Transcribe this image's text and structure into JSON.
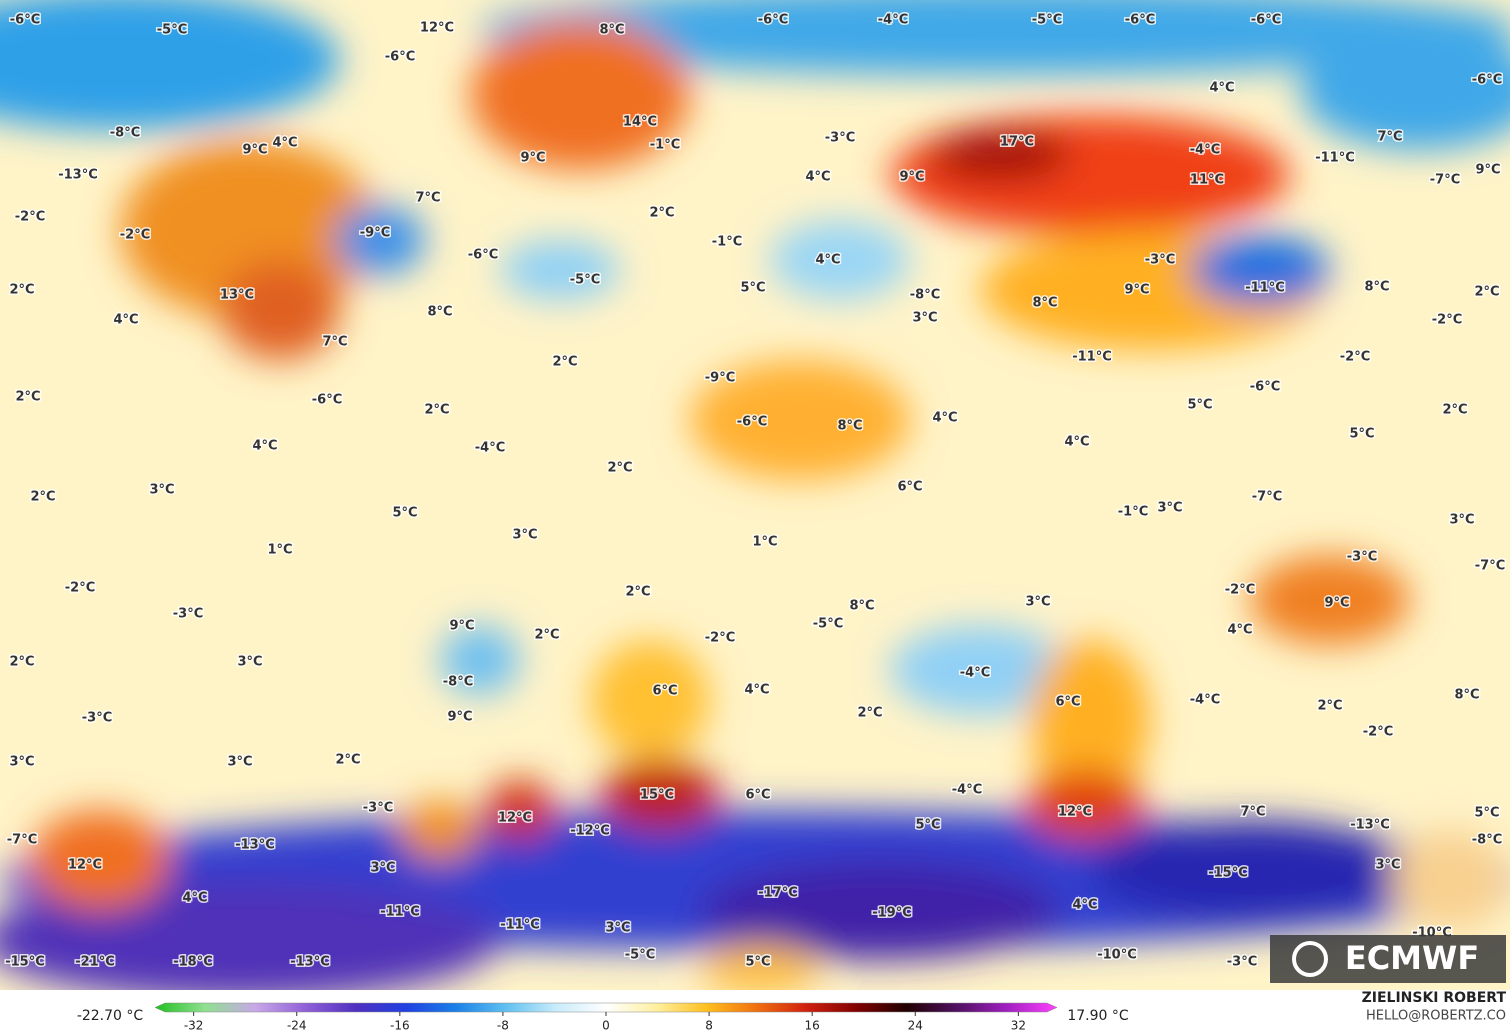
{
  "map_labels": [
    "-6°C",
    "-5°C",
    "12°C",
    "-6°C",
    "8°C",
    "-6°C",
    "-4°C",
    "-5°C",
    "-6°C",
    "-6°C",
    "-6°C",
    "4°C",
    "-8°C",
    "9°C",
    "4°C",
    "14°C",
    "-1°C",
    "9°C",
    "-3°C",
    "17°C",
    "-4°C",
    "-11°C",
    "7°C",
    "9°C",
    "-13°C",
    "4°C",
    "9°C",
    "11°C",
    "-7°C",
    "-2°C",
    "-2°C",
    "7°C",
    "2°C",
    "-9°C",
    "-1°C",
    "-6°C",
    "-5°C",
    "4°C",
    "-3°C",
    "-11°C",
    "2°C",
    "13°C",
    "5°C",
    "9°C",
    "8°C",
    "2°C",
    "4°C",
    "8°C",
    "-8°C",
    "3°C",
    "8°C",
    "-2°C",
    "7°C",
    "2°C",
    "-11°C",
    "-2°C",
    "-9°C",
    "-6°C",
    "2°C",
    "-6°C",
    "2°C",
    "5°C",
    "2°C",
    "-6°C",
    "8°C",
    "4°C",
    "4°C",
    "-4°C",
    "4°C",
    "5°C",
    "2°C",
    "3°C",
    "2°C",
    "-7°C",
    "6°C",
    "5°C",
    "-1°C",
    "3°C",
    "3°C",
    "3°C",
    "1°C",
    "1°C",
    "-3°C",
    "-7°C",
    "-2°C",
    "2°C",
    "-2°C",
    "3°C",
    "9°C",
    "-3°C",
    "9°C",
    "2°C",
    "-2°C",
    "8°C",
    "-5°C",
    "4°C",
    "2°C",
    "3°C",
    "-4°C",
    "6°C",
    "4°C",
    "-8°C",
    "6°C",
    "-4°C",
    "8°C",
    "-3°C",
    "9°C",
    "2°C",
    "2°C",
    "-2°C",
    "3°C",
    "3°C",
    "2°C",
    "-3°C",
    "15°C",
    "6°C",
    "-4°C",
    "12°C",
    "7°C",
    "5°C",
    "-13°C",
    "12°C",
    "-12°C",
    "5°C",
    "-7°C",
    "-13°C",
    "-8°C",
    "12°C",
    "3°C",
    "3°C",
    "-15°C",
    "4°C",
    "-17°C",
    "-19°C",
    "4°C",
    "-11°C",
    "-11°C",
    "3°C",
    "-10°C",
    "-5°C",
    "-10°C",
    "-3°C",
    "-15°C",
    "-21°C",
    "-18°C",
    "-13°C",
    "5°C"
  ],
  "colorbar": {
    "min_label": "-22.70 °C",
    "max_label": "17.90 °C",
    "lim": [
      -35,
      35
    ],
    "ticks": [
      -32,
      -24,
      -16,
      -8,
      0,
      8,
      16,
      24,
      32
    ],
    "colors": [
      "#20c020",
      "#90e090",
      "#c8a8e8",
      "#9060d8",
      "#5030c0",
      "#2040e0",
      "#1a80e8",
      "#60c0f0",
      "#c8ecfa",
      "#ffffff",
      "#fff0a0",
      "#ffc020",
      "#f07010",
      "#d02010",
      "#800000",
      "#200000",
      "#501060",
      "#a020c0",
      "#ff40ff"
    ]
  },
  "credits": {
    "logo": "ECMWF",
    "author": "ZIELINSKI ROBERT",
    "contact": "HELLO@ROBERTZ.CO"
  }
}
